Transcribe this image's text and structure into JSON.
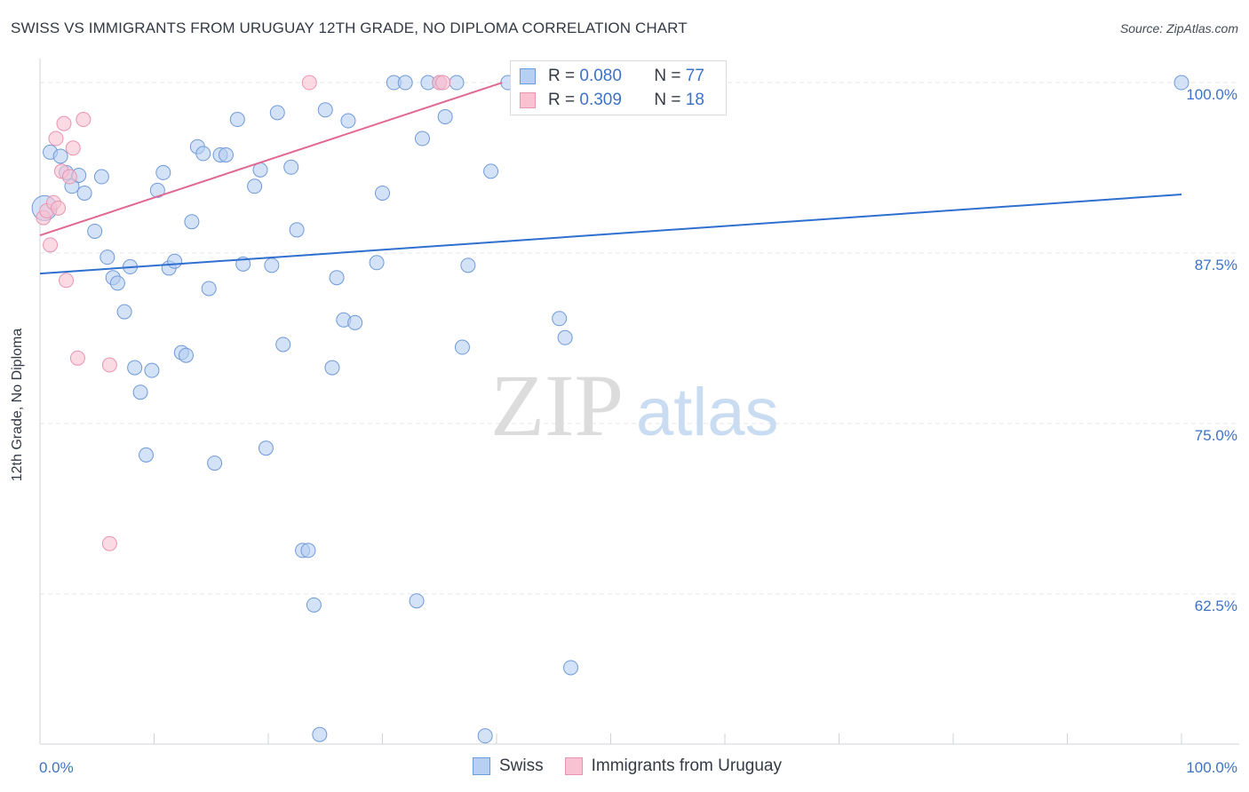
{
  "header": {
    "title": "SWISS VS IMMIGRANTS FROM URUGUAY 12TH GRADE, NO DIPLOMA CORRELATION CHART",
    "source": "Source: ZipAtlas.com"
  },
  "watermark": {
    "zip": "ZIP",
    "atlas": "atlas"
  },
  "stats": [
    {
      "r_label": "R =",
      "r_value": "0.080",
      "n_label": "N =",
      "n_value": "77"
    },
    {
      "r_label": "R =",
      "r_value": "0.309",
      "n_label": "N =",
      "n_value": "18"
    }
  ],
  "colors": {
    "swiss_fill": "#b6cff2",
    "swiss_stroke": "#6f9ad8",
    "swiss_line": "#2f6fcf",
    "uruguay_fill": "#f8c2d2",
    "uruguay_stroke": "#e994b0",
    "uruguay_line": "#e06892",
    "tick_label": "#3d73c5",
    "grid": "#e3e6ea"
  },
  "chart_data": {
    "type": "scatter",
    "title": "SWISS VS IMMIGRANTS FROM URUGUAY 12TH GRADE, NO DIPLOMA CORRELATION CHART",
    "xlabel": "",
    "ylabel": "12th Grade, No Diploma",
    "xlim": [
      0,
      100
    ],
    "ylim": [
      51.5,
      101.5
    ],
    "x_tick_labels": [
      "0.0%",
      "100.0%"
    ],
    "y_ticks": [
      100,
      87.5,
      75,
      62.5
    ],
    "y_tick_labels": [
      "100.0%",
      "87.5%",
      "75.0%",
      "62.5%"
    ],
    "grid": true,
    "legend_position": "bottom",
    "series": [
      {
        "name": "Swiss",
        "r": 0.08,
        "n": 77,
        "trend": {
          "x": [
            0,
            100
          ],
          "y": [
            86.0,
            91.8
          ]
        },
        "points": [
          {
            "x": 0.4,
            "y": 90.8,
            "big": true
          },
          {
            "x": 0.9,
            "y": 94.9
          },
          {
            "x": 1.8,
            "y": 94.6
          },
          {
            "x": 2.3,
            "y": 93.4
          },
          {
            "x": 2.8,
            "y": 92.4
          },
          {
            "x": 3.4,
            "y": 93.2
          },
          {
            "x": 3.9,
            "y": 91.9
          },
          {
            "x": 4.8,
            "y": 89.1
          },
          {
            "x": 5.4,
            "y": 93.1
          },
          {
            "x": 5.9,
            "y": 87.2
          },
          {
            "x": 6.4,
            "y": 85.7
          },
          {
            "x": 6.8,
            "y": 85.3
          },
          {
            "x": 7.4,
            "y": 83.2
          },
          {
            "x": 7.9,
            "y": 86.5
          },
          {
            "x": 8.3,
            "y": 79.1
          },
          {
            "x": 8.8,
            "y": 77.3
          },
          {
            "x": 9.3,
            "y": 72.7
          },
          {
            "x": 9.8,
            "y": 78.9
          },
          {
            "x": 10.3,
            "y": 92.1
          },
          {
            "x": 10.8,
            "y": 93.4
          },
          {
            "x": 11.3,
            "y": 86.4
          },
          {
            "x": 11.8,
            "y": 86.9
          },
          {
            "x": 12.4,
            "y": 80.2
          },
          {
            "x": 12.8,
            "y": 80.0
          },
          {
            "x": 13.3,
            "y": 89.8
          },
          {
            "x": 13.8,
            "y": 95.3
          },
          {
            "x": 14.3,
            "y": 94.8
          },
          {
            "x": 14.8,
            "y": 84.9
          },
          {
            "x": 15.3,
            "y": 72.1
          },
          {
            "x": 15.8,
            "y": 94.7
          },
          {
            "x": 16.3,
            "y": 94.7
          },
          {
            "x": 17.3,
            "y": 97.3
          },
          {
            "x": 17.8,
            "y": 86.7
          },
          {
            "x": 18.8,
            "y": 92.4
          },
          {
            "x": 19.3,
            "y": 93.6
          },
          {
            "x": 19.8,
            "y": 73.2
          },
          {
            "x": 20.3,
            "y": 86.6
          },
          {
            "x": 20.8,
            "y": 97.8
          },
          {
            "x": 21.3,
            "y": 80.8
          },
          {
            "x": 22.0,
            "y": 93.8
          },
          {
            "x": 22.5,
            "y": 89.2
          },
          {
            "x": 23.0,
            "y": 65.7
          },
          {
            "x": 23.5,
            "y": 65.7
          },
          {
            "x": 24.0,
            "y": 61.7
          },
          {
            "x": 24.5,
            "y": 52.2
          },
          {
            "x": 25.0,
            "y": 98.0
          },
          {
            "x": 25.6,
            "y": 79.1
          },
          {
            "x": 26.0,
            "y": 85.7
          },
          {
            "x": 26.6,
            "y": 82.6
          },
          {
            "x": 27.0,
            "y": 97.2
          },
          {
            "x": 27.6,
            "y": 82.4
          },
          {
            "x": 29.5,
            "y": 86.8
          },
          {
            "x": 30.0,
            "y": 91.9
          },
          {
            "x": 31.0,
            "y": 100.0
          },
          {
            "x": 32.0,
            "y": 100.0
          },
          {
            "x": 33.0,
            "y": 62.0
          },
          {
            "x": 33.5,
            "y": 95.9
          },
          {
            "x": 34.0,
            "y": 100.0
          },
          {
            "x": 35.0,
            "y": 100.0
          },
          {
            "x": 35.5,
            "y": 97.5
          },
          {
            "x": 36.5,
            "y": 100.0
          },
          {
            "x": 37.0,
            "y": 80.6
          },
          {
            "x": 37.5,
            "y": 86.6
          },
          {
            "x": 39.0,
            "y": 52.1
          },
          {
            "x": 39.5,
            "y": 93.5
          },
          {
            "x": 41.0,
            "y": 100.0
          },
          {
            "x": 42.0,
            "y": 100.0
          },
          {
            "x": 44.0,
            "y": 100.0
          },
          {
            "x": 45.0,
            "y": 100.0
          },
          {
            "x": 45.5,
            "y": 82.7
          },
          {
            "x": 46.0,
            "y": 81.3
          },
          {
            "x": 46.5,
            "y": 57.1
          },
          {
            "x": 47.0,
            "y": 100.0
          },
          {
            "x": 48.0,
            "y": 100.0
          },
          {
            "x": 49.0,
            "y": 100.0
          },
          {
            "x": 50.0,
            "y": 100.0
          },
          {
            "x": 100.0,
            "y": 100.0
          }
        ]
      },
      {
        "name": "Immigrants from Uruguay",
        "r": 0.309,
        "n": 18,
        "trend": {
          "x": [
            0,
            40.5
          ],
          "y": [
            88.8,
            100.0
          ]
        },
        "points": [
          {
            "x": 0.3,
            "y": 90.1
          },
          {
            "x": 0.6,
            "y": 90.6
          },
          {
            "x": 0.9,
            "y": 88.1
          },
          {
            "x": 1.2,
            "y": 91.2
          },
          {
            "x": 1.4,
            "y": 95.9
          },
          {
            "x": 1.6,
            "y": 90.8
          },
          {
            "x": 1.9,
            "y": 93.5
          },
          {
            "x": 2.1,
            "y": 97.0
          },
          {
            "x": 2.3,
            "y": 85.5
          },
          {
            "x": 2.6,
            "y": 93.1
          },
          {
            "x": 2.9,
            "y": 95.2
          },
          {
            "x": 3.3,
            "y": 79.8
          },
          {
            "x": 3.8,
            "y": 97.3
          },
          {
            "x": 6.1,
            "y": 79.3
          },
          {
            "x": 6.1,
            "y": 66.2
          },
          {
            "x": 23.6,
            "y": 100.0
          },
          {
            "x": 35.0,
            "y": 100.0
          },
          {
            "x": 35.3,
            "y": 100.0
          }
        ]
      }
    ]
  }
}
